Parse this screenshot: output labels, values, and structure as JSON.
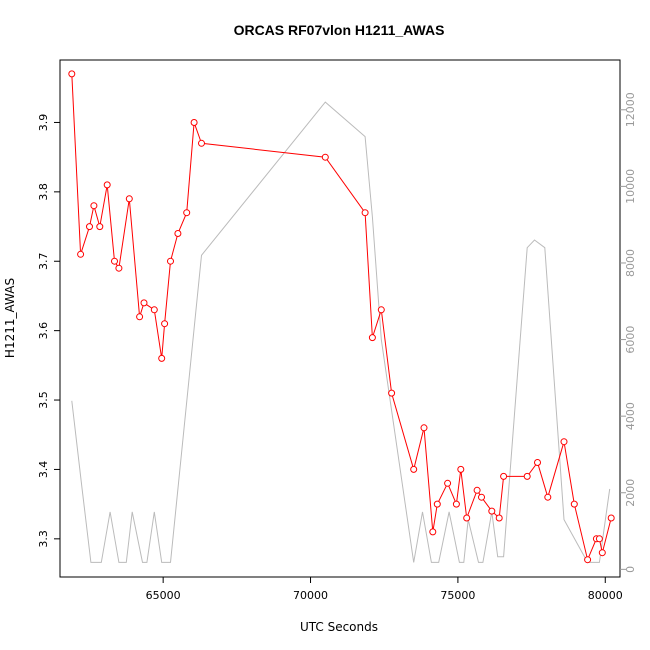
{
  "chart_data": {
    "type": "line",
    "title": "ORCAS RF07vlon H1211_AWAS",
    "xlabel": "UTC Seconds",
    "ylabel": "H1211_AWAS",
    "xlim": [
      61500,
      80500
    ],
    "ylim": [
      3.245,
      3.99
    ],
    "y2lim": [
      -200,
      13300
    ],
    "x_ticks": [
      65000,
      70000,
      75000,
      80000
    ],
    "x_tick_labels": [
      "65000",
      "70000",
      "75000",
      "80000"
    ],
    "y_ticks": [
      3.3,
      3.4,
      3.5,
      3.6,
      3.7,
      3.8,
      3.9
    ],
    "y_tick_labels": [
      "3.3",
      "3.4",
      "3.5",
      "3.6",
      "3.7",
      "3.8",
      "3.9"
    ],
    "y2_ticks": [
      0,
      2000,
      4000,
      6000,
      8000,
      10000,
      12000
    ],
    "y2_tick_labels": [
      "0",
      "2000",
      "4000",
      "6000",
      "8000",
      "10000",
      "12000"
    ],
    "grid": false,
    "series": [
      {
        "axis": "left",
        "color": "#ff0000",
        "marker": "open-circle",
        "x": [
          61900,
          62200,
          62500,
          62650,
          62850,
          63100,
          63350,
          63500,
          63850,
          64200,
          64350,
          64700,
          64950,
          65050,
          65250,
          65500,
          65800,
          66050,
          66300,
          70500,
          71850,
          72100,
          72400,
          72750,
          73500,
          73850,
          74150,
          74300,
          74650,
          74950,
          75100,
          75300,
          75650,
          75800,
          76150,
          76400,
          76550,
          77350,
          77700,
          78050,
          78600,
          78950,
          79400,
          79700,
          79800,
          79900,
          80200
        ],
        "y": [
          3.97,
          3.71,
          3.75,
          3.78,
          3.75,
          3.81,
          3.7,
          3.69,
          3.79,
          3.62,
          3.64,
          3.63,
          3.56,
          3.61,
          3.7,
          3.74,
          3.77,
          3.9,
          3.87,
          3.85,
          3.77,
          3.59,
          3.63,
          3.51,
          3.4,
          3.46,
          3.31,
          3.35,
          3.38,
          3.35,
          3.4,
          3.33,
          3.37,
          3.36,
          3.34,
          3.33,
          3.39,
          3.39,
          3.41,
          3.36,
          3.44,
          3.35,
          3.27,
          3.3,
          3.3,
          3.28,
          3.33
        ]
      },
      {
        "axis": "right",
        "color": "#bbbbbb",
        "marker": "none",
        "x": [
          61900,
          62250,
          62550,
          62900,
          63200,
          63500,
          63750,
          63950,
          64300,
          64450,
          64700,
          64950,
          65250,
          66300,
          70500,
          71850,
          72100,
          72400,
          73500,
          73800,
          74100,
          74350,
          74700,
          75050,
          75200,
          75350,
          75700,
          75850,
          76150,
          76350,
          76550,
          77350,
          77600,
          77950,
          78600,
          79400,
          79800,
          80150
        ],
        "y": [
          4400,
          2100,
          180,
          180,
          1500,
          180,
          180,
          1500,
          180,
          180,
          1500,
          180,
          180,
          8200,
          12200,
          11300,
          9200,
          6000,
          180,
          1500,
          180,
          180,
          1500,
          180,
          180,
          1300,
          180,
          180,
          1500,
          330,
          330,
          8400,
          8600,
          8400,
          1300,
          180,
          180,
          2100
        ]
      }
    ]
  }
}
